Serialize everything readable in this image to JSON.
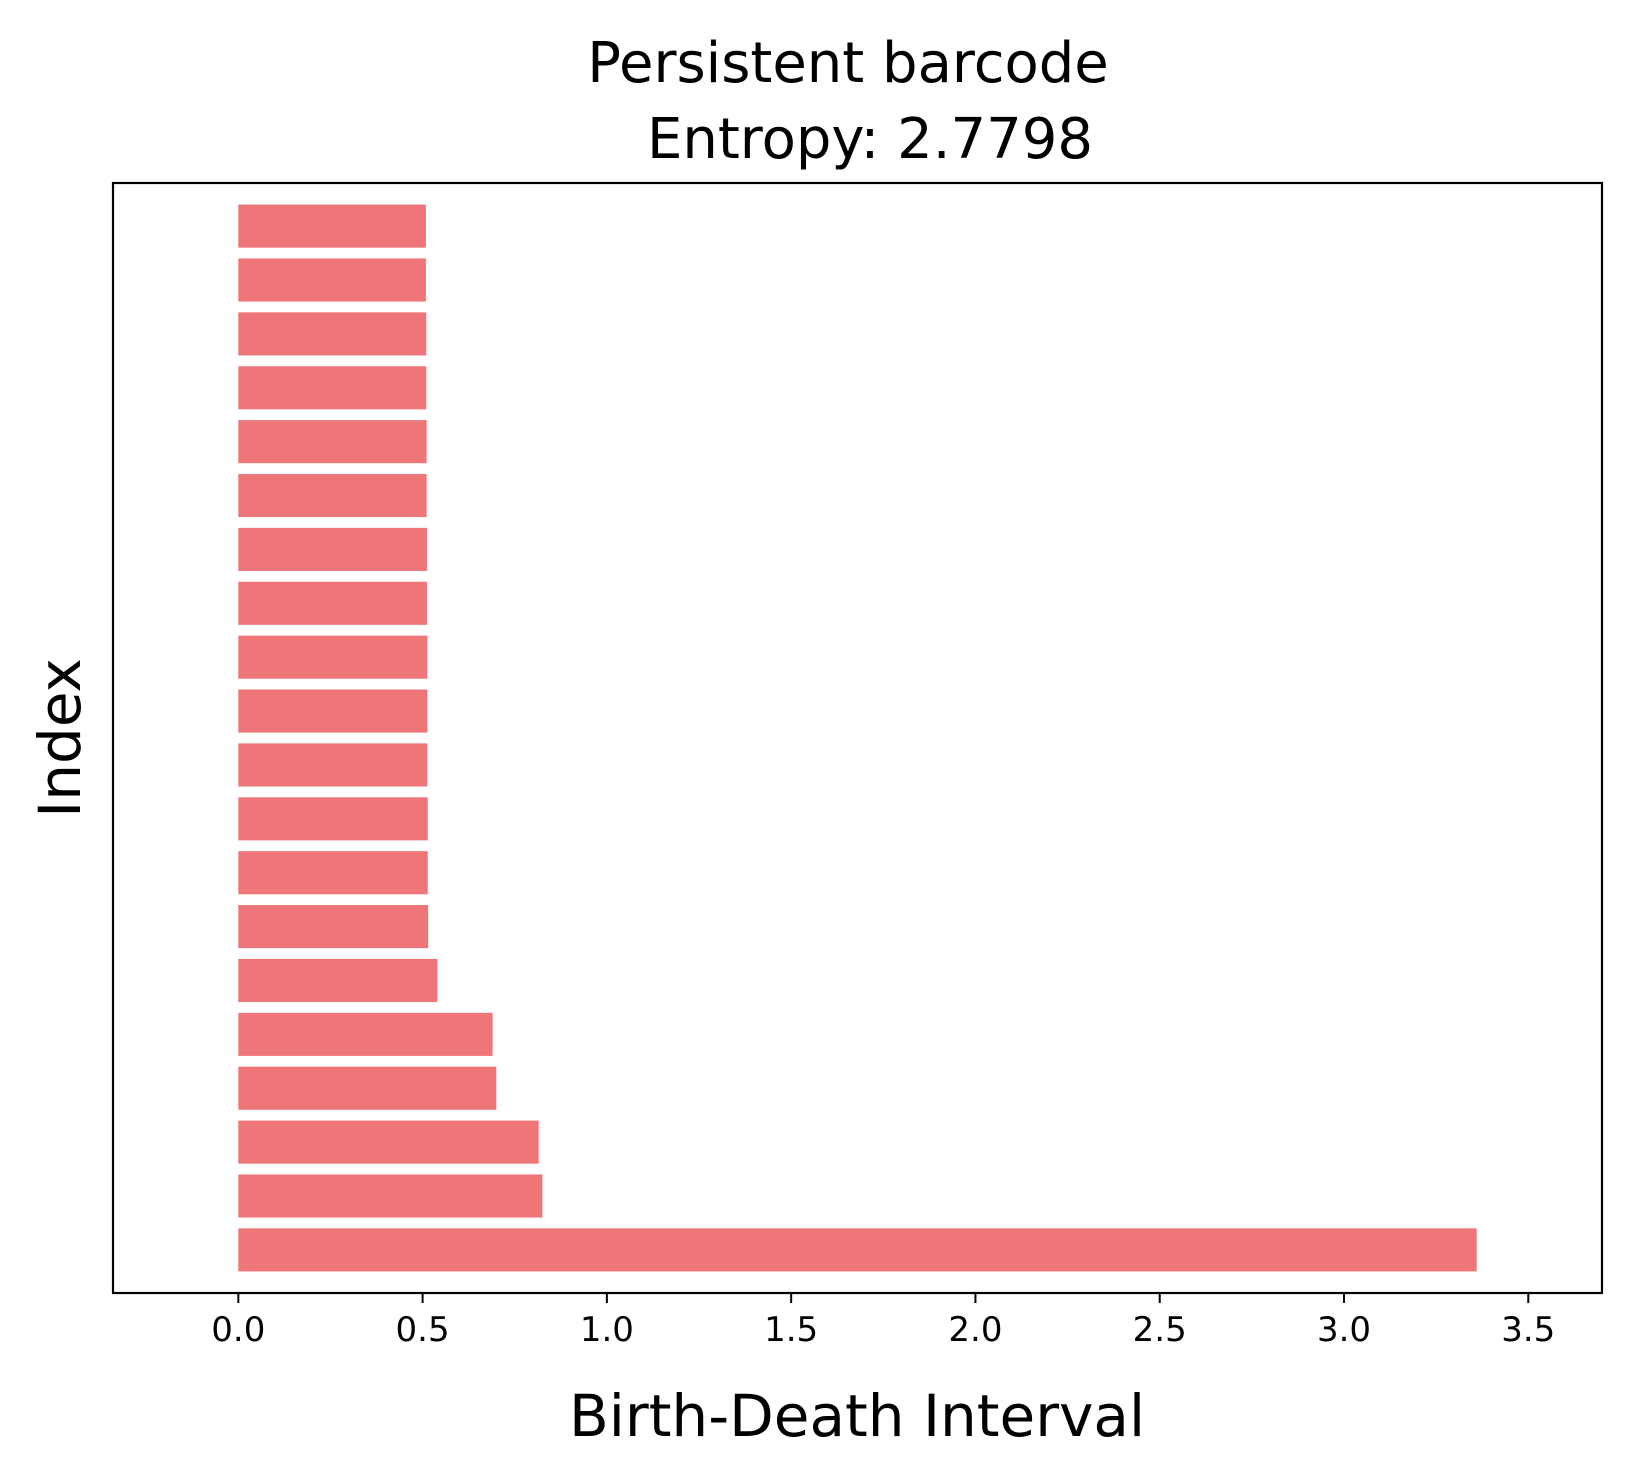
{
  "chart_data": {
    "type": "bar",
    "orientation": "horizontal",
    "title_lines": [
      "Persistent barcode",
      "Entropy: 2.7798"
    ],
    "xlabel": "Birth-Death Interval",
    "ylabel": "Index",
    "xlim": [
      -0.34,
      3.7
    ],
    "xticks": [
      0.0,
      0.5,
      1.0,
      1.5,
      2.0,
      2.5,
      3.0,
      3.5
    ],
    "xtick_labels": [
      "0.0",
      "0.5",
      "1.0",
      "1.5",
      "2.0",
      "2.5",
      "3.0",
      "3.5"
    ],
    "yticks_shown": false,
    "grid": false,
    "bar_color": "#ee7679",
    "bars": [
      {
        "index": 0,
        "birth": 0.0,
        "death": 3.36
      },
      {
        "index": 1,
        "birth": 0.0,
        "death": 0.825
      },
      {
        "index": 2,
        "birth": 0.0,
        "death": 0.815
      },
      {
        "index": 3,
        "birth": 0.0,
        "death": 0.7
      },
      {
        "index": 4,
        "birth": 0.0,
        "death": 0.69
      },
      {
        "index": 5,
        "birth": 0.0,
        "death": 0.54
      },
      {
        "index": 6,
        "birth": 0.0,
        "death": 0.515
      },
      {
        "index": 7,
        "birth": 0.0,
        "death": 0.514
      },
      {
        "index": 8,
        "birth": 0.0,
        "death": 0.514
      },
      {
        "index": 9,
        "birth": 0.0,
        "death": 0.513
      },
      {
        "index": 10,
        "birth": 0.0,
        "death": 0.513
      },
      {
        "index": 11,
        "birth": 0.0,
        "death": 0.513
      },
      {
        "index": 12,
        "birth": 0.0,
        "death": 0.512
      },
      {
        "index": 13,
        "birth": 0.0,
        "death": 0.512
      },
      {
        "index": 14,
        "birth": 0.0,
        "death": 0.511
      },
      {
        "index": 15,
        "birth": 0.0,
        "death": 0.511
      },
      {
        "index": 16,
        "birth": 0.0,
        "death": 0.51
      },
      {
        "index": 17,
        "birth": 0.0,
        "death": 0.51
      },
      {
        "index": 18,
        "birth": 0.0,
        "death": 0.509
      },
      {
        "index": 19,
        "birth": 0.0,
        "death": 0.509
      }
    ]
  }
}
